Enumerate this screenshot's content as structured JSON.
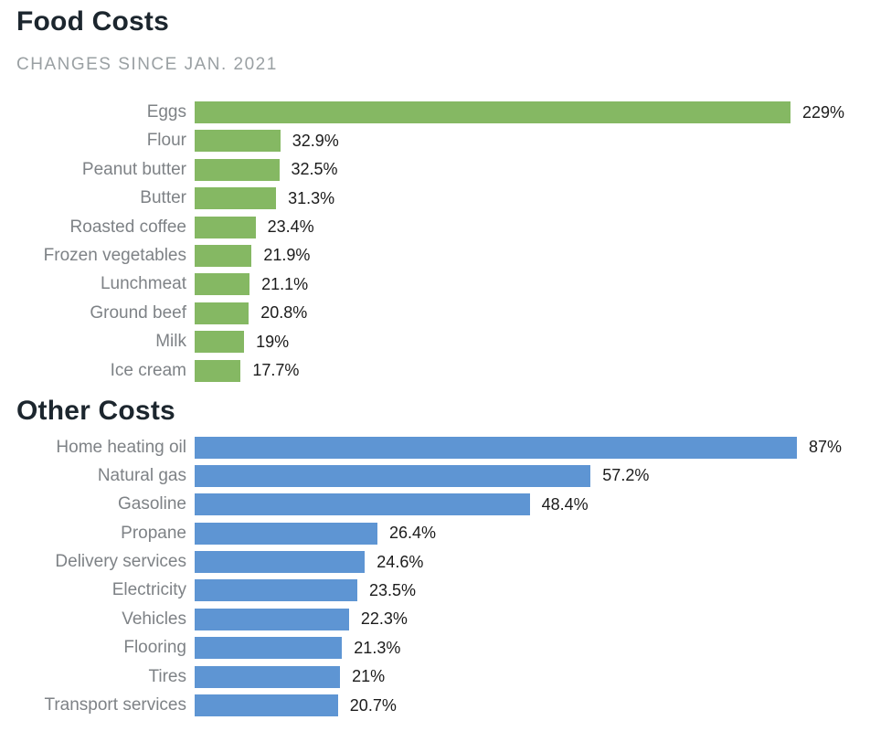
{
  "colors": {
    "food_bar": "#85b863",
    "other_bar": "#5e95d3",
    "title_text": "#1c262e",
    "subtitle_text": "#9aa0a3",
    "category_label_text": "#7e8286",
    "value_text": "#1b1b1b",
    "background": "#ffffff"
  },
  "chart_data": [
    {
      "type": "bar",
      "orientation": "horizontal",
      "title": "Food Costs",
      "subtitle": "CHANGES SINCE JAN. 2021",
      "categories": [
        "Eggs",
        "Flour",
        "Peanut butter",
        "Butter",
        "Roasted coffee",
        "Frozen vegetables",
        "Lunchmeat",
        "Ground beef",
        "Milk",
        "Ice cream"
      ],
      "values": [
        229,
        32.9,
        32.5,
        31.3,
        23.4,
        21.9,
        21.1,
        20.8,
        19,
        17.7
      ],
      "value_labels": [
        "229%",
        "32.9%",
        "32.5%",
        "31.3%",
        "23.4%",
        "21.9%",
        "21.1%",
        "20.8%",
        "19%",
        "17.7%"
      ],
      "unit": "%",
      "bar_color": "#85b863",
      "xlim": [
        0,
        229
      ],
      "grid": false,
      "legend": false
    },
    {
      "type": "bar",
      "orientation": "horizontal",
      "title": "Other Costs",
      "subtitle": "",
      "categories": [
        "Home heating oil",
        "Natural gas",
        "Gasoline",
        "Propane",
        "Delivery services",
        "Electricity",
        "Vehicles",
        "Flooring",
        "Tires",
        "Transport services"
      ],
      "values": [
        87,
        57.2,
        48.4,
        26.4,
        24.6,
        23.5,
        22.3,
        21.3,
        21,
        20.7
      ],
      "value_labels": [
        "87%",
        "57.2%",
        "48.4%",
        "26.4%",
        "24.6%",
        "23.5%",
        "22.3%",
        "21.3%",
        "21%",
        "20.7%"
      ],
      "unit": "%",
      "bar_color": "#5e95d3",
      "xlim": [
        0,
        87
      ],
      "grid": false,
      "legend": false
    }
  ]
}
